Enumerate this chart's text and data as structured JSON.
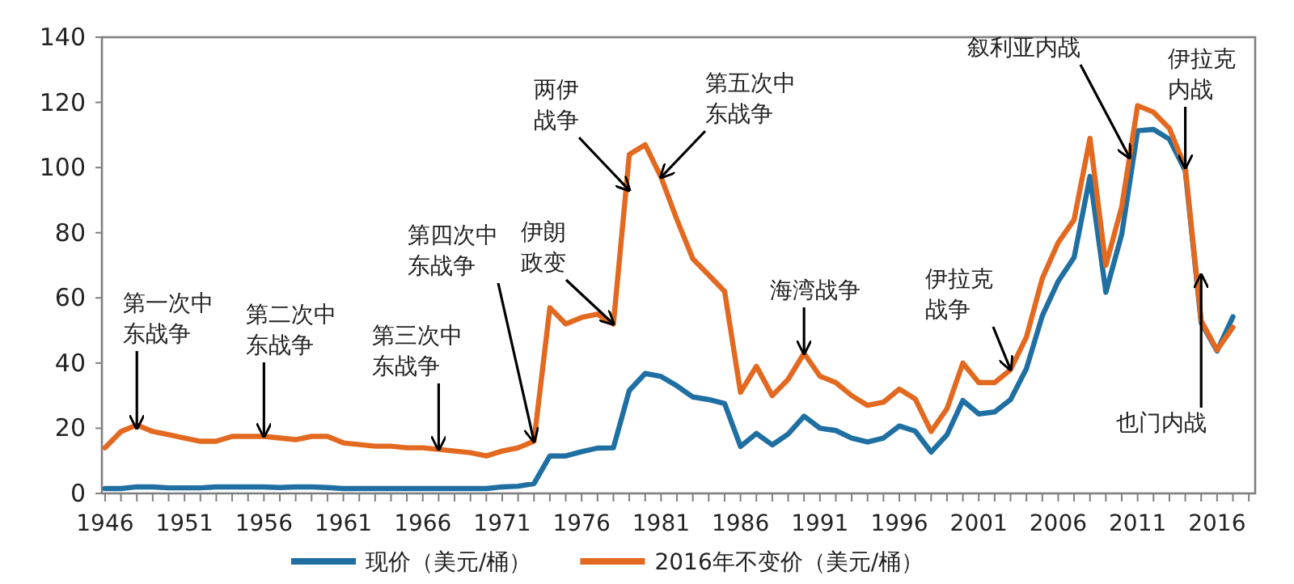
{
  "chart_data": {
    "type": "line",
    "x": [
      1946,
      1947,
      1948,
      1949,
      1950,
      1951,
      1952,
      1953,
      1954,
      1955,
      1956,
      1957,
      1958,
      1959,
      1960,
      1961,
      1962,
      1963,
      1964,
      1965,
      1966,
      1967,
      1968,
      1969,
      1970,
      1971,
      1972,
      1973,
      1974,
      1975,
      1976,
      1977,
      1978,
      1979,
      1980,
      1981,
      1982,
      1983,
      1984,
      1985,
      1986,
      1987,
      1988,
      1989,
      1990,
      1991,
      1992,
      1993,
      1994,
      1995,
      1996,
      1997,
      1998,
      1999,
      2000,
      2001,
      2002,
      2003,
      2004,
      2005,
      2006,
      2007,
      2008,
      2009,
      2010,
      2011,
      2012,
      2013,
      2014,
      2015,
      2016,
      2017
    ],
    "series": [
      {
        "name": "现价（美元/桶）",
        "color": "#1f6fa3",
        "values": [
          1.5,
          1.5,
          2,
          2,
          1.7,
          1.7,
          1.7,
          2,
          2,
          2,
          2,
          1.8,
          2,
          2,
          1.8,
          1.5,
          1.5,
          1.5,
          1.5,
          1.5,
          1.5,
          1.5,
          1.5,
          1.5,
          1.5,
          2,
          2.2,
          3,
          11.5,
          11.5,
          12.8,
          13.9,
          14,
          31.6,
          36.8,
          35.9,
          33,
          29.6,
          28.8,
          27.6,
          14.4,
          18.4,
          14.9,
          18.2,
          23.7,
          20,
          19.3,
          17,
          15.8,
          17,
          20.7,
          19.1,
          12.7,
          18,
          28.5,
          24.4,
          25,
          28.8,
          38.3,
          54.5,
          65.1,
          72.4,
          97.3,
          61.7,
          79.5,
          111.3,
          111.7,
          108.7,
          99,
          52.4,
          43.7,
          54.2
        ]
      },
      {
        "name": "2016年不变价（美元/桶）",
        "color": "#e2691f",
        "values": [
          14,
          19,
          21,
          19,
          18,
          17,
          16,
          16,
          17.5,
          17.5,
          17.5,
          17,
          16.5,
          17.5,
          17.5,
          15.5,
          15,
          14.5,
          14.5,
          14,
          14,
          13.5,
          13,
          12.5,
          11.5,
          13,
          14,
          16,
          57,
          52,
          54,
          55,
          52,
          104,
          107,
          97,
          84,
          72,
          67,
          62,
          31,
          39,
          30,
          35,
          43,
          36,
          34,
          30,
          27,
          28,
          32,
          29,
          19,
          26,
          40,
          34,
          34,
          38,
          48,
          66,
          77,
          84,
          109,
          70,
          88,
          119,
          117,
          112,
          100,
          53,
          44,
          51
        ]
      }
    ],
    "xlim": [
      1945.8,
      2018.4
    ],
    "xticks": [
      1946,
      {
        "value": 1947,
        "label": null
      },
      {
        "value": 1948,
        "label": null
      },
      {
        "value": 1949,
        "label": null
      },
      {
        "value": 1950,
        "label": null
      },
      1951,
      {
        "value": 1952,
        "label": null
      },
      {
        "value": 1953,
        "label": null
      },
      {
        "value": 1954,
        "label": null
      },
      {
        "value": 1955,
        "label": null
      },
      1956,
      {
        "value": 1957,
        "label": null
      },
      {
        "value": 1958,
        "label": null
      },
      {
        "value": 1959,
        "label": null
      },
      {
        "value": 1960,
        "label": null
      },
      1961,
      {
        "value": 1962,
        "label": null
      },
      {
        "value": 1963,
        "label": null
      },
      {
        "value": 1964,
        "label": null
      },
      {
        "value": 1965,
        "label": null
      },
      1966,
      {
        "value": 1967,
        "label": null
      },
      {
        "value": 1968,
        "label": null
      },
      {
        "value": 1969,
        "label": null
      },
      {
        "value": 1970,
        "label": null
      },
      1971,
      {
        "value": 1972,
        "label": null
      },
      {
        "value": 1973,
        "label": null
      },
      {
        "value": 1974,
        "label": null
      },
      {
        "value": 1975,
        "label": null
      },
      1976,
      {
        "value": 1977,
        "label": null
      },
      {
        "value": 1978,
        "label": null
      },
      {
        "value": 1979,
        "label": null
      },
      {
        "value": 1980,
        "label": null
      },
      1981,
      {
        "value": 1982,
        "label": null
      },
      {
        "value": 1983,
        "label": null
      },
      {
        "value": 1984,
        "label": null
      },
      {
        "value": 1985,
        "label": null
      },
      1986,
      {
        "value": 1987,
        "label": null
      },
      {
        "value": 1988,
        "label": null
      },
      {
        "value": 1989,
        "label": null
      },
      {
        "value": 1990,
        "label": null
      },
      1991,
      {
        "value": 1992,
        "label": null
      },
      {
        "value": 1993,
        "label": null
      },
      {
        "value": 1994,
        "label": null
      },
      {
        "value": 1995,
        "label": null
      },
      1996,
      {
        "value": 1997,
        "label": null
      },
      {
        "value": 1998,
        "label": null
      },
      {
        "value": 1999,
        "label": null
      },
      {
        "value": 2000,
        "label": null
      },
      2001,
      {
        "value": 2002,
        "label": null
      },
      {
        "value": 2003,
        "label": null
      },
      {
        "value": 2004,
        "label": null
      },
      {
        "value": 2005,
        "label": null
      },
      2006,
      {
        "value": 2007,
        "label": null
      },
      {
        "value": 2008,
        "label": null
      },
      {
        "value": 2009,
        "label": null
      },
      {
        "value": 2010,
        "label": null
      },
      2011,
      {
        "value": 2012,
        "label": null
      },
      {
        "value": 2013,
        "label": null
      },
      {
        "value": 2014,
        "label": null
      },
      {
        "value": 2015,
        "label": null
      },
      2016,
      {
        "value": 2017,
        "label": null
      },
      {
        "value": 2018,
        "label": null
      }
    ],
    "ylim": [
      0,
      140
    ],
    "yticks": [
      0,
      20,
      40,
      60,
      80,
      100,
      120,
      140
    ],
    "annotations": [
      {
        "text": "第一次中东战争",
        "x": 1948,
        "y": 20
      },
      {
        "text": "第二次中东战争",
        "x": 1956,
        "y": 17.5
      },
      {
        "text": "第三次中东战争",
        "x": 1967,
        "y": 13.5
      },
      {
        "text": "第四次中东战争",
        "x": 1973,
        "y": 16
      },
      {
        "text": "伊朗政变",
        "x": 1978,
        "y": 52
      },
      {
        "text": "两伊战争",
        "x": 1979,
        "y": 93
      },
      {
        "text": "第五次中东战争",
        "x": 1981,
        "y": 97
      },
      {
        "text": "海湾战争",
        "x": 1990,
        "y": 43
      },
      {
        "text": "伊拉克战争",
        "x": 2003,
        "y": 38
      },
      {
        "text": "叙利亚内战",
        "x": 2010.5,
        "y": 103
      },
      {
        "text": "伊拉克内战",
        "x": 2014,
        "y": 100
      },
      {
        "text": "也门内战",
        "x": 2015,
        "y": 67
      }
    ],
    "grid": false,
    "legend": "bottom",
    "line_style": "solid",
    "marker": "none"
  }
}
